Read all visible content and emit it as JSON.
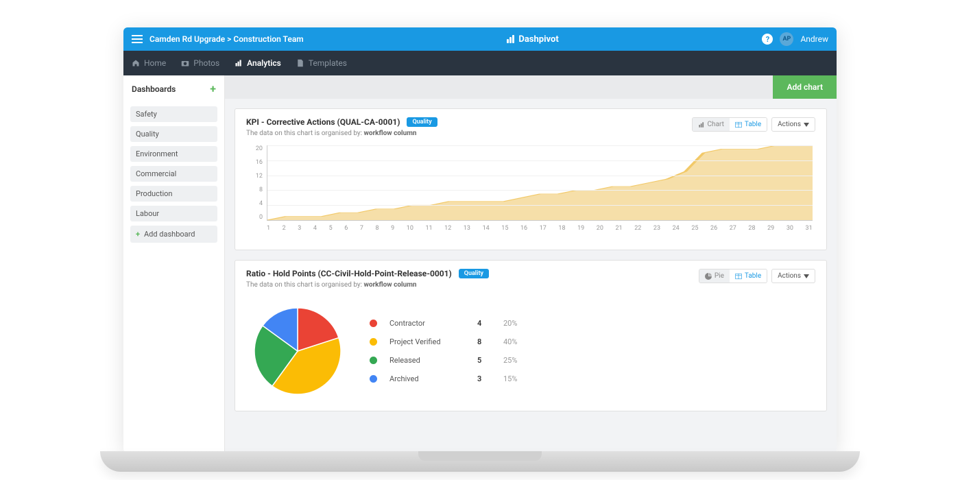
{
  "topbar": {
    "breadcrumb": "Camden Rd Upgrade > Construction Team",
    "brand": "Dashpivot",
    "user_initials": "AP",
    "user_name": "Andrew"
  },
  "nav": {
    "home": "Home",
    "photos": "Photos",
    "analytics": "Analytics",
    "templates": "Templates"
  },
  "sidebar": {
    "title": "Dashboards",
    "items": [
      "Safety",
      "Quality",
      "Environment",
      "Commercial",
      "Production",
      "Labour"
    ],
    "add_label": "Add dashboard"
  },
  "toolbar": {
    "add_chart": "Add chart"
  },
  "chart1": {
    "title": "KPI - Corrective Actions (QUAL-CA-0001)",
    "badge": "Quality",
    "subtext_prefix": "The data on this chart is organised by: ",
    "subtext_col": "workflow column",
    "ctrl_chart": "Chart",
    "ctrl_table": "Table",
    "actions": "Actions",
    "type": "area",
    "ylim": [
      0,
      20
    ],
    "yticks": [
      20,
      16,
      12,
      8,
      4,
      0
    ],
    "xticks": [
      "1",
      "2",
      "3",
      "4",
      "5",
      "6",
      "7",
      "8",
      "9",
      "10",
      "11",
      "12",
      "13",
      "14",
      "15",
      "16",
      "17",
      "18",
      "19",
      "20",
      "21",
      "22",
      "23",
      "24",
      "25",
      "26",
      "27",
      "28",
      "29",
      "30",
      "31"
    ],
    "values": [
      0,
      1,
      1,
      1,
      2,
      2,
      3,
      3,
      4,
      4,
      5,
      5,
      5,
      5,
      6,
      7,
      7,
      8,
      8,
      9,
      9,
      10,
      11,
      13,
      18,
      19,
      19,
      19,
      20,
      21,
      21
    ],
    "fill_color": "#f5d99a",
    "line_color": "#f2c968",
    "grid_color": "#f0f0f0",
    "axis_color": "#cccccc"
  },
  "chart2": {
    "title": "Ratio - Hold Points (CC-Civil-Hold-Point-Release-0001)",
    "badge": "Quality",
    "subtext_prefix": "The data on this chart is organised by: ",
    "subtext_col": "workflow column",
    "ctrl_pie": "Pie",
    "ctrl_table": "Table",
    "actions": "Actions",
    "type": "pie",
    "colors": {
      "contractor": "#ea4335",
      "project_verified": "#fbbc05",
      "released": "#34a853",
      "archived": "#4285f4"
    },
    "legend": [
      {
        "key": "contractor",
        "label": "Contractor",
        "value": "4",
        "pct": "20%"
      },
      {
        "key": "project_verified",
        "label": "Project Verified",
        "value": "8",
        "pct": "40%"
      },
      {
        "key": "released",
        "label": "Released",
        "value": "5",
        "pct": "25%"
      },
      {
        "key": "archived",
        "label": "Archived",
        "value": "3",
        "pct": "15%"
      }
    ],
    "slices": [
      {
        "key": "contractor",
        "pct": 20
      },
      {
        "key": "project_verified",
        "pct": 40
      },
      {
        "key": "released",
        "pct": 25
      },
      {
        "key": "archived",
        "pct": 15
      }
    ]
  }
}
